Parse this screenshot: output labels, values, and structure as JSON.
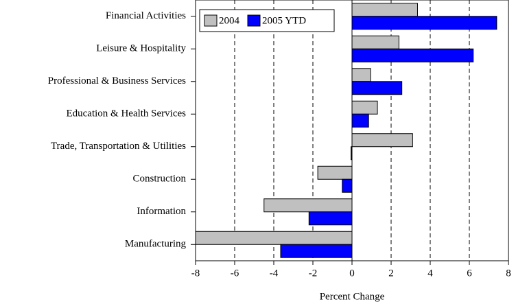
{
  "chart_data": {
    "type": "barh",
    "categories": [
      "Financial Activities",
      "Leisure & Hospitality",
      "Professional & Business Services",
      "Education & Health Services",
      "Trade, Transportation & Utilities",
      "Construction",
      "Information",
      "Manufacturing"
    ],
    "series": [
      {
        "name": "2004",
        "color": "#c0c0c0",
        "values": [
          3.35,
          2.4,
          0.95,
          1.3,
          3.1,
          -1.75,
          -4.5,
          -8.0
        ]
      },
      {
        "name": "2005 YTD",
        "color": "#0000ff",
        "values": [
          7.4,
          6.2,
          2.55,
          0.85,
          -0.05,
          -0.5,
          -2.2,
          -3.65
        ]
      }
    ],
    "xlabel": "Percent Change",
    "xlim": [
      -8,
      8
    ],
    "xticks": [
      -8,
      -6,
      -4,
      -2,
      0,
      2,
      4,
      6,
      8
    ],
    "grid": true,
    "legend": "upper left"
  }
}
